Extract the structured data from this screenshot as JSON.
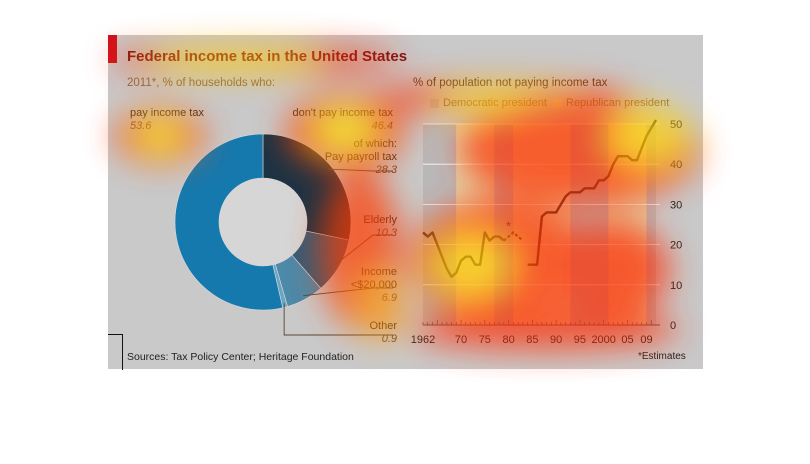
{
  "title": "Federal income tax in the United States",
  "sources": "Sources: Tax Policy Center; Heritage Foundation",
  "footnote": "*Estimates",
  "chart_data": [
    {
      "type": "pie",
      "title": "2011*, % of households who:",
      "slices": [
        {
          "label": "pay income tax",
          "value": 53.6,
          "color": "#1679ad"
        },
        {
          "label": "don't pay income tax",
          "value": 46.4,
          "sublabel": "of which:"
        },
        {
          "label": "Pay payroll tax",
          "value": 28.3,
          "color": "#1b3344"
        },
        {
          "label": "Elderly",
          "value": 10.3,
          "color": "#355c75"
        },
        {
          "label": "Income <$20,000",
          "label_lines": [
            "Income",
            "<$20,000"
          ],
          "value": 6.9,
          "color": "#4d89a8"
        },
        {
          "label": "Other",
          "value": 0.9,
          "color": "#6aa6c4"
        }
      ],
      "display_values": {
        "pay": "53.6",
        "dont": "46.4",
        "payroll": "28.3",
        "elderly": "10.3",
        "income": "6.9",
        "other": "0.9"
      },
      "sublabel": "of which:"
    },
    {
      "type": "line",
      "title": "% of population not paying income tax",
      "legend": [
        {
          "name": "Democratic president",
          "color": "#b9b9b9"
        },
        {
          "name": "Republican president",
          "color": "#e2d2a6"
        }
      ],
      "ylim": [
        0,
        50
      ],
      "yticks": [
        0,
        10,
        20,
        30,
        40,
        50
      ],
      "xlim": [
        1962,
        2011
      ],
      "xtick_years": [
        1962,
        1970,
        1975,
        1980,
        1985,
        1990,
        1995,
        2000,
        2005,
        2009
      ],
      "xtick_labels": [
        "1962",
        "70",
        "75",
        "80",
        "85",
        "90",
        "95",
        "2000",
        "05",
        "09"
      ],
      "bands": [
        {
          "from": 1962,
          "to": 1969,
          "party": "Democratic"
        },
        {
          "from": 1969,
          "to": 1977,
          "party": "Republican"
        },
        {
          "from": 1977,
          "to": 1981,
          "party": "Democratic"
        },
        {
          "from": 1981,
          "to": 1993,
          "party": "Republican"
        },
        {
          "from": 1993,
          "to": 2001,
          "party": "Democratic"
        },
        {
          "from": 2001,
          "to": 2009,
          "party": "Republican"
        },
        {
          "from": 2009,
          "to": 2011,
          "party": "Democratic"
        }
      ],
      "series": [
        {
          "x": [
            1962,
            1963,
            1964,
            1965,
            1966,
            1967,
            1968,
            1969,
            1970,
            1971,
            1972,
            1973,
            1974,
            1975,
            1976,
            1977,
            1978,
            1979,
            1980,
            1981,
            1982,
            1983,
            1984,
            1985,
            1986,
            1987,
            1988,
            1989,
            1990,
            1991,
            1992,
            1993,
            1994,
            1995,
            1996,
            1997,
            1998,
            1999,
            2000,
            2001,
            2002,
            2003,
            2004,
            2005,
            2006,
            2007,
            2008,
            2009,
            2010,
            2011
          ],
          "y": [
            23,
            22,
            23,
            20,
            17,
            14,
            12,
            13,
            16,
            17,
            17,
            15,
            15,
            23,
            21,
            22,
            22,
            21,
            null,
            null,
            null,
            null,
            15,
            15,
            15,
            27,
            28,
            28,
            28,
            30,
            32,
            33,
            33,
            33,
            34,
            34,
            34,
            36,
            36,
            37,
            40,
            42,
            42,
            42,
            41,
            41,
            44,
            47,
            49,
            51
          ]
        }
      ],
      "dashed_segment": {
        "x": [
          1979,
          1980,
          1981,
          1982,
          1983
        ],
        "y": [
          21,
          22,
          23,
          22,
          21
        ]
      },
      "annotation": {
        "text": "*",
        "x": 1980,
        "y": 23
      }
    }
  ]
}
